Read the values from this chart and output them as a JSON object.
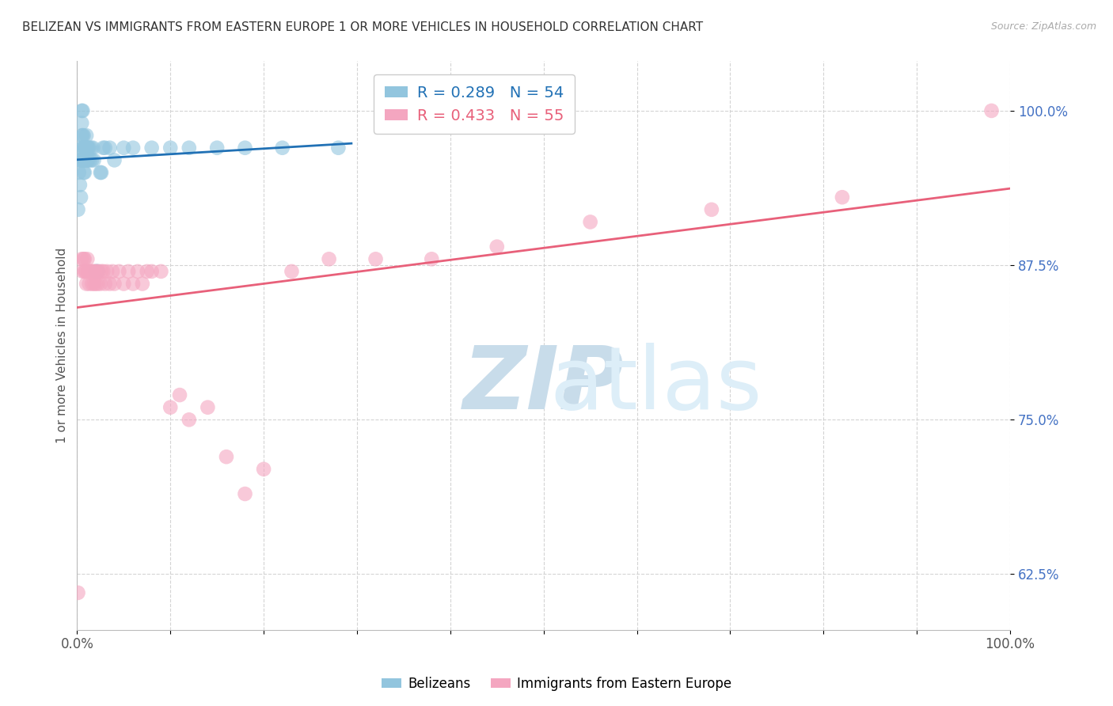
{
  "title": "BELIZEAN VS IMMIGRANTS FROM EASTERN EUROPE 1 OR MORE VEHICLES IN HOUSEHOLD CORRELATION CHART",
  "source": "Source: ZipAtlas.com",
  "ylabel": "1 or more Vehicles in Household",
  "xlabel": "",
  "x_ticks": [
    0.0,
    0.1,
    0.2,
    0.3,
    0.4,
    0.5,
    0.6,
    0.7,
    0.8,
    0.9,
    1.0
  ],
  "x_tick_labels": [
    "0.0%",
    "",
    "",
    "",
    "",
    "",
    "",
    "",
    "",
    "",
    "100.0%"
  ],
  "y_ticks": [
    0.625,
    0.75,
    0.875,
    1.0
  ],
  "y_tick_labels": [
    "62.5%",
    "75.0%",
    "87.5%",
    "100.0%"
  ],
  "blue_R": 0.289,
  "blue_N": 54,
  "pink_R": 0.433,
  "pink_N": 55,
  "blue_color": "#92c5de",
  "pink_color": "#f4a6c0",
  "blue_line_color": "#2171b5",
  "pink_line_color": "#e8607a",
  "legend_label_blue": "Belizeans",
  "legend_label_pink": "Immigrants from Eastern Europe",
  "background_color": "#ffffff",
  "grid_color": "#d0d0d0",
  "title_color": "#333333",
  "source_color": "#aaaaaa",
  "watermark_color": "#ddeef8",
  "blue_x": [
    0.001,
    0.002,
    0.002,
    0.003,
    0.004,
    0.004,
    0.004,
    0.005,
    0.005,
    0.005,
    0.005,
    0.006,
    0.006,
    0.006,
    0.006,
    0.007,
    0.007,
    0.007,
    0.007,
    0.008,
    0.008,
    0.008,
    0.009,
    0.009,
    0.01,
    0.01,
    0.01,
    0.011,
    0.011,
    0.012,
    0.012,
    0.013,
    0.014,
    0.015,
    0.016,
    0.017,
    0.018,
    0.02,
    0.022,
    0.025,
    0.026,
    0.028,
    0.03,
    0.035,
    0.04,
    0.05,
    0.06,
    0.08,
    0.1,
    0.12,
    0.15,
    0.18,
    0.22,
    0.28
  ],
  "blue_y": [
    0.92,
    0.95,
    0.96,
    0.94,
    0.93,
    0.96,
    0.97,
    0.96,
    0.98,
    0.99,
    1.0,
    0.96,
    0.97,
    0.98,
    1.0,
    0.95,
    0.96,
    0.97,
    0.98,
    0.95,
    0.96,
    0.97,
    0.96,
    0.97,
    0.96,
    0.97,
    0.98,
    0.96,
    0.97,
    0.96,
    0.97,
    0.97,
    0.96,
    0.97,
    0.96,
    0.97,
    0.96,
    0.87,
    0.87,
    0.95,
    0.95,
    0.97,
    0.97,
    0.97,
    0.96,
    0.97,
    0.97,
    0.97,
    0.97,
    0.97,
    0.97,
    0.97,
    0.97,
    0.97
  ],
  "pink_x": [
    0.001,
    0.005,
    0.006,
    0.007,
    0.008,
    0.008,
    0.009,
    0.01,
    0.01,
    0.011,
    0.012,
    0.013,
    0.014,
    0.015,
    0.016,
    0.017,
    0.018,
    0.019,
    0.02,
    0.021,
    0.022,
    0.023,
    0.025,
    0.026,
    0.028,
    0.03,
    0.032,
    0.035,
    0.038,
    0.04,
    0.045,
    0.05,
    0.055,
    0.06,
    0.065,
    0.07,
    0.075,
    0.08,
    0.09,
    0.1,
    0.11,
    0.12,
    0.14,
    0.16,
    0.18,
    0.2,
    0.23,
    0.27,
    0.32,
    0.38,
    0.45,
    0.55,
    0.68,
    0.82,
    0.98
  ],
  "pink_y": [
    0.61,
    0.88,
    0.87,
    0.88,
    0.87,
    0.88,
    0.87,
    0.86,
    0.87,
    0.88,
    0.87,
    0.86,
    0.87,
    0.87,
    0.86,
    0.87,
    0.86,
    0.87,
    0.86,
    0.87,
    0.86,
    0.87,
    0.86,
    0.87,
    0.87,
    0.86,
    0.87,
    0.86,
    0.87,
    0.86,
    0.87,
    0.86,
    0.87,
    0.86,
    0.87,
    0.86,
    0.87,
    0.87,
    0.87,
    0.76,
    0.77,
    0.75,
    0.76,
    0.72,
    0.69,
    0.71,
    0.87,
    0.88,
    0.88,
    0.88,
    0.89,
    0.91,
    0.92,
    0.93,
    1.0
  ]
}
